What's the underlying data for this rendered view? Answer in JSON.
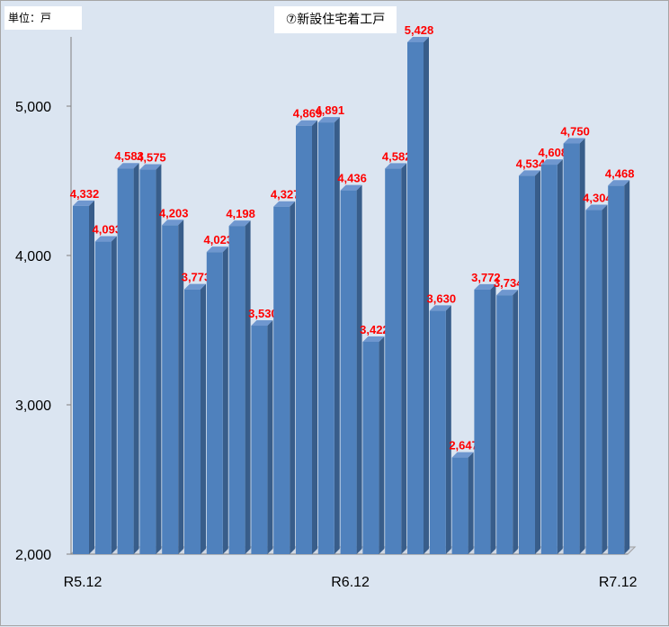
{
  "unit_label": "単位：戸",
  "chart_data": {
    "type": "bar",
    "title": "⑦新設住宅着工戸",
    "categories": [
      "R5.12",
      "",
      "",
      "",
      "",
      "",
      "",
      "",
      "",
      "",
      "",
      "",
      "R6.12",
      "",
      "",
      "",
      "",
      "",
      "",
      "",
      "",
      "",
      "",
      "",
      "R7.12"
    ],
    "values": [
      4332,
      4093,
      4583,
      4575,
      4203,
      3773,
      4023,
      4198,
      3530,
      4327,
      4869,
      4891,
      4436,
      3422,
      4582,
      5428,
      3630,
      2647,
      3772,
      3734,
      4534,
      4608,
      4750,
      4304,
      4468
    ],
    "data_labels": [
      "4,332",
      "4,093",
      "4,583",
      "4,575",
      "4,203",
      "3,773",
      "4,023",
      "4,198",
      "3,530",
      "4,327",
      "4,869",
      "4,891",
      "4,436",
      "3,422",
      "4,582",
      "5,428",
      "3,630",
      "2,647",
      "3,772",
      "3,734",
      "4,534",
      "4,608",
      "4,750",
      "4,304",
      "4,468"
    ],
    "ylim": [
      2000,
      5500
    ],
    "yticks": [
      2000,
      3000,
      4000,
      5000
    ],
    "ytick_labels": [
      "2,000",
      "3,000",
      "4,000",
      "5,000"
    ],
    "grid": false,
    "colors": {
      "bar": "#4f81bd",
      "bar_side": "#385d8a",
      "bar_top": "#6f97cf",
      "label": "#ff0000",
      "background": "#dbe5f1"
    }
  }
}
